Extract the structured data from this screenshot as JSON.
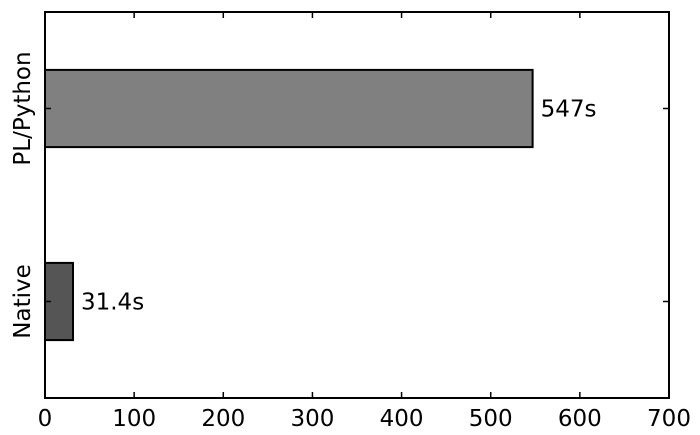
{
  "chart_data": {
    "type": "bar",
    "orientation": "horizontal",
    "title": "",
    "xlabel": "",
    "ylabel": "",
    "categories": [
      "PL/Python",
      "Native"
    ],
    "values": [
      547,
      31.4
    ],
    "data_labels": [
      "547s",
      "31.4s"
    ],
    "colors": [
      "#808080",
      "#555555"
    ],
    "xlim": [
      0,
      700
    ],
    "xticks": [
      0,
      100,
      200,
      300,
      400,
      500,
      600,
      700
    ],
    "grid": false,
    "legend": "none"
  }
}
